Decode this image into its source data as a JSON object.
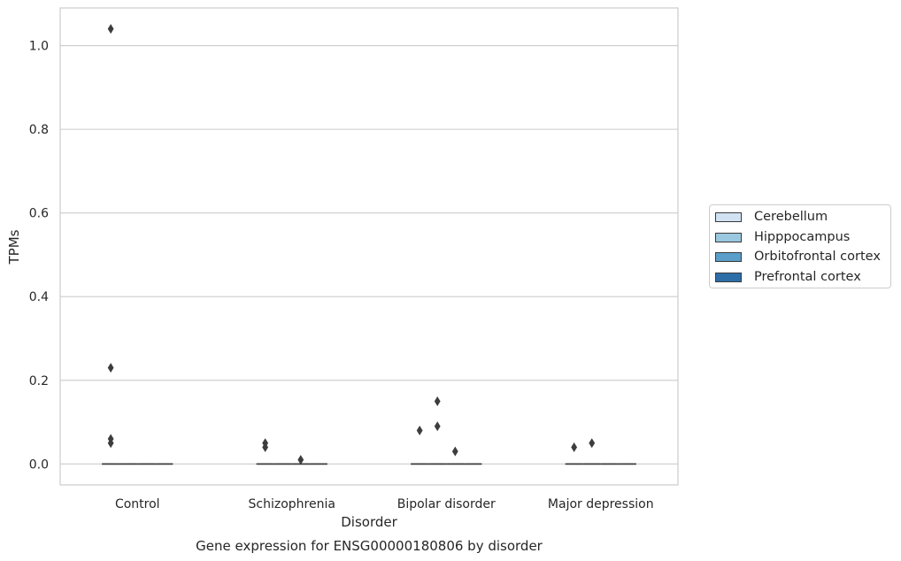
{
  "chart_data": {
    "type": "box",
    "title": "Gene expression for ENSG00000180806 by disorder",
    "xlabel": "Disorder",
    "ylabel": "TPMs",
    "categories": [
      "Control",
      "Schizophrenia",
      "Bipolar disorder",
      "Major depression"
    ],
    "ylim": [
      -0.05,
      1.09
    ],
    "yticks": [
      0.0,
      0.2,
      0.4,
      0.6,
      0.8,
      1.0
    ],
    "ytick_labels": [
      "0.0",
      "0.2",
      "0.4",
      "0.6",
      "0.8",
      "1.0"
    ],
    "grid": true,
    "legend_position": "right",
    "series": [
      {
        "name": "Cerebellum",
        "color": "#d1e2f2",
        "medians": [
          0,
          0,
          0,
          0
        ],
        "outliers": [
          [
            0.05,
            0.06,
            0.23,
            1.04
          ],
          [
            0.04,
            0.05
          ],
          [
            0.08
          ],
          [
            0.04
          ]
        ]
      },
      {
        "name": "Hipppocampus",
        "color": "#9ac8e0",
        "medians": [
          0,
          0,
          0,
          0
        ],
        "outliers": [
          [],
          [],
          [
            0.09,
            0.15
          ],
          [
            0.05
          ]
        ]
      },
      {
        "name": "Orbitofrontal cortex",
        "color": "#5a9ec9",
        "medians": [
          0,
          0,
          0,
          0
        ],
        "outliers": [
          [],
          [
            0.01
          ],
          [
            0.03
          ],
          []
        ]
      },
      {
        "name": "Prefrontal cortex",
        "color": "#2d6ea8",
        "medians": [
          0,
          0,
          0,
          0
        ],
        "outliers": [
          [],
          [],
          [],
          []
        ]
      }
    ]
  }
}
